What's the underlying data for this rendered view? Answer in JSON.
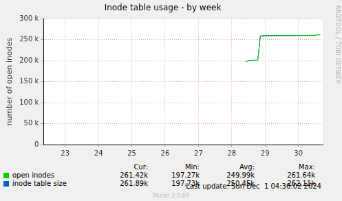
{
  "chart_data": {
    "type": "line",
    "title": "Inode table usage - by week",
    "y_label": "number of open inodes",
    "x": [
      28.42,
      28.5,
      28.6,
      28.7,
      28.78,
      28.82,
      28.86,
      29.0,
      29.5,
      30.0,
      30.5,
      30.56,
      30.65
    ],
    "series": [
      {
        "name": "open inodes",
        "color": "#00cc00",
        "values": [
          197300,
          200000,
          200500,
          201000,
          201000,
          230000,
          259000,
          259500,
          259800,
          260000,
          260200,
          261640,
          261420
        ]
      },
      {
        "name": "inode table size",
        "color": "#0066b3",
        "values": [
          197730,
          200500,
          201500,
          201500,
          201500,
          232000,
          259500,
          260000,
          260200,
          260400,
          260600,
          262110,
          261890
        ]
      }
    ],
    "xlim": [
      22.35,
      30.73
    ],
    "xticks": [
      23,
      24,
      25,
      26,
      27,
      28,
      29,
      30
    ],
    "ylim": [
      0,
      300000
    ],
    "yticks": [
      0,
      {
        "value": 50000,
        "label": "50 k"
      },
      {
        "value": 100000,
        "label": "100 k"
      },
      {
        "value": 150000,
        "label": "150 k"
      },
      {
        "value": 200000,
        "label": "200 k"
      },
      {
        "value": 250000,
        "label": "250 k"
      },
      {
        "value": 300000,
        "label": "300 k"
      }
    ],
    "grid": true,
    "legend": "bottom",
    "stats": {
      "columns": [
        "Cur:",
        "Min:",
        "Avg:",
        "Max:"
      ],
      "rows": [
        [
          "261.42k",
          "197.27k",
          "249.99k",
          "261.64k"
        ],
        [
          "261.89k",
          "197.73k",
          "250.45k",
          "262.11k"
        ]
      ]
    },
    "footer": "Last update: Sun Dec  1 04:30:02 2024",
    "credit": "Munin 2.0.69",
    "side_text": "RRDTOOL / TOBI OETIKER"
  }
}
